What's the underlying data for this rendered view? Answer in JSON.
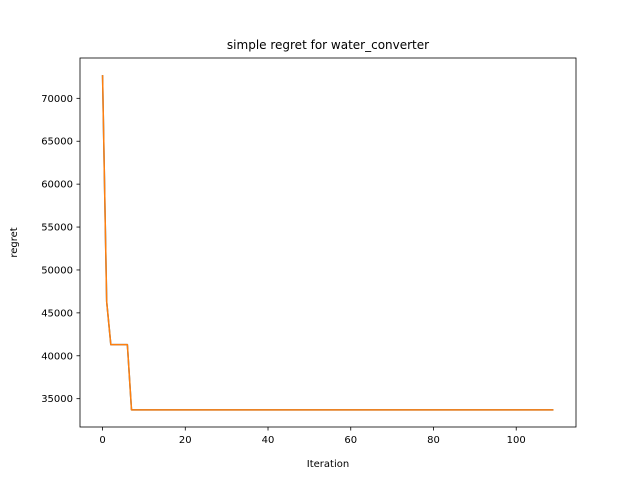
{
  "chart_data": {
    "type": "line",
    "title": "simple regret for water_converter",
    "xlabel": "Iteration",
    "ylabel": "regret",
    "xlim": [
      -5.45,
      114.45
    ],
    "ylim": [
      31700,
      74700
    ],
    "xticks": [
      0,
      20,
      40,
      60,
      80,
      100
    ],
    "xtick_labels": [
      "0",
      "20",
      "40",
      "60",
      "80",
      "100"
    ],
    "yticks": [
      35000,
      40000,
      45000,
      50000,
      55000,
      60000,
      65000,
      70000
    ],
    "ytick_labels": [
      "35000",
      "40000",
      "45000",
      "50000",
      "55000",
      "60000",
      "65000",
      "70000"
    ],
    "grid": false,
    "series": [
      {
        "color": "#1f77b4",
        "points": [
          [
            0,
            72700
          ],
          [
            1,
            46300
          ],
          [
            2,
            41300
          ],
          [
            6,
            41300
          ],
          [
            7,
            33700
          ],
          [
            109,
            33700
          ]
        ]
      },
      {
        "color": "#ff7f0e",
        "points": [
          [
            0,
            72700
          ],
          [
            1,
            46300
          ],
          [
            2,
            41300
          ],
          [
            6,
            41300
          ],
          [
            7,
            33700
          ],
          [
            109,
            33700
          ]
        ]
      }
    ]
  }
}
